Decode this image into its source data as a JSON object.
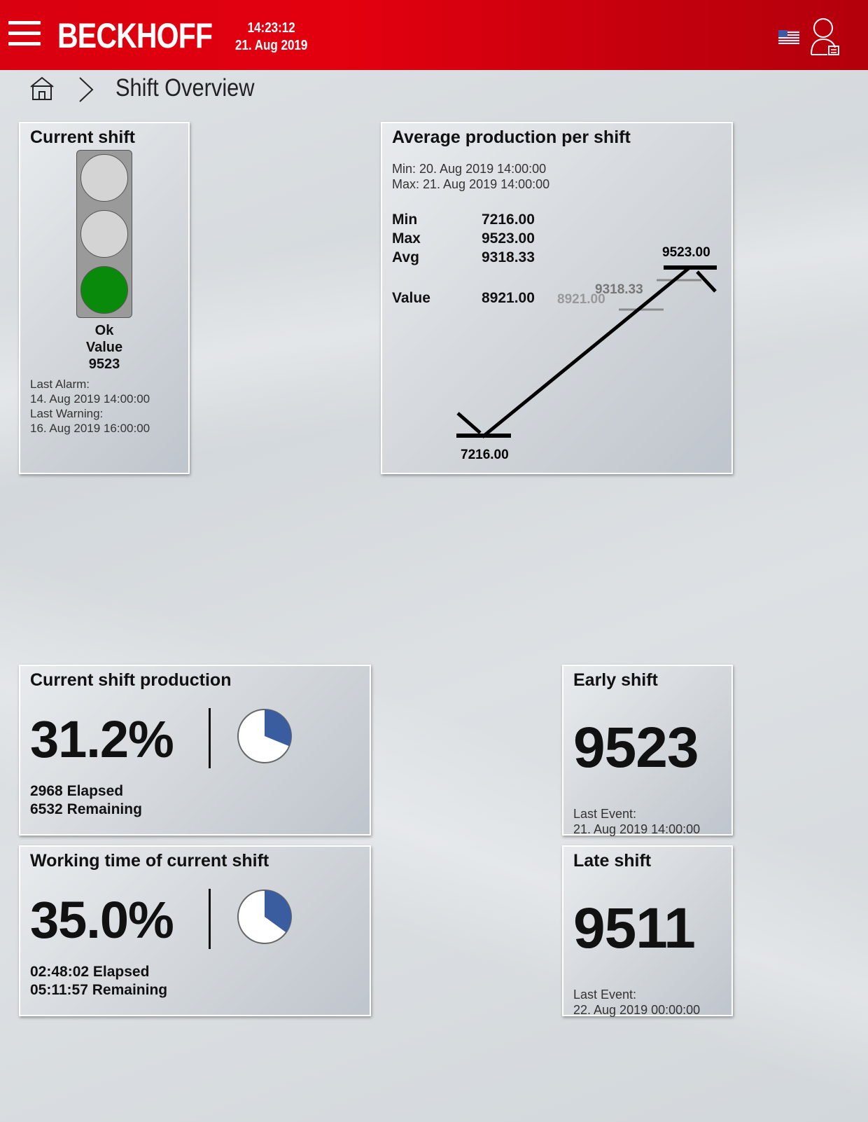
{
  "header": {
    "brand": "BECKHOFF",
    "time": "14:23:12",
    "date": "21. Aug 2019"
  },
  "breadcrumb": {
    "title": "Shift Overview"
  },
  "current_shift": {
    "title": "Current shift",
    "active_lamp": "green",
    "colors": {
      "off": "#d4d4d4",
      "green": "#0a8a0a",
      "housing": "#9a9a9a"
    },
    "status": "Ok",
    "value_label": "Value",
    "value": "9523",
    "last_alarm_label": "Last Alarm:",
    "last_alarm": "14. Aug 2019 14:00:00",
    "last_warning_label": "Last Warning:",
    "last_warning": "16. Aug 2019 16:00:00"
  },
  "avg_production": {
    "title": "Average production per shift",
    "range_min": "Min:  20. Aug 2019 14:00:00",
    "range_max": "Max: 21. Aug 2019 14:00:00",
    "stats": {
      "min_label": "Min",
      "min": "7216.00",
      "max_label": "Max",
      "max": "9523.00",
      "avg_label": "Avg",
      "avg": "9318.33",
      "value_label": "Value",
      "value": "8921.00"
    },
    "marker_labels": {
      "max": "9523.00",
      "avg": "9318.33",
      "value": "8921.00",
      "min": "7216.00"
    }
  },
  "production": {
    "title": "Current shift production",
    "percent_text": "31.2%",
    "fraction": 0.312,
    "elapsed": "2968",
    "elapsed_label": "Elapsed",
    "remaining": "6532",
    "remaining_label": "Remaining",
    "pie_color": "#3a5da0"
  },
  "working_time": {
    "title": "Working time of current shift",
    "percent_text": "35.0%",
    "fraction": 0.35,
    "elapsed": "02:48:02",
    "elapsed_label": "Elapsed",
    "remaining": "05:11:57",
    "remaining_label": "Remaining",
    "pie_color": "#3a5da0"
  },
  "early_shift": {
    "title": "Early shift",
    "value": "9523",
    "event_label": "Last Event:",
    "event": "21. Aug 2019 14:00:00"
  },
  "late_shift": {
    "title": "Late shift",
    "value": "9511",
    "event_label": "Last Event:",
    "event": "22. Aug 2019 00:00:00"
  }
}
